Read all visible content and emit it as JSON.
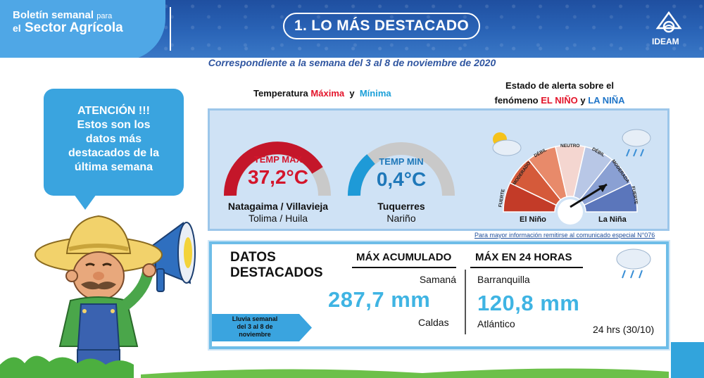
{
  "header": {
    "brand_line1": "Boletín semanal",
    "brand_line1_small": "para",
    "brand_line2_small": "el",
    "brand_line2": "Sector Agrícola",
    "section_title": "1. LO MÁS DESTACADO",
    "logo_text": "IDEAM",
    "subtitle": "Correspondiente a la semana del 3 al  8 de noviembre de 2020"
  },
  "bubble": {
    "line1": "ATENCIÓN !!!",
    "line2": "Estos son los",
    "line3": "datos más",
    "line4": "destacados de la",
    "line5": "última semana"
  },
  "temperature": {
    "title_prefix": "Temperatura",
    "max_word": "Máxima",
    "and": "y",
    "min_word": "Mínima",
    "max": {
      "label": "TEMP MAX",
      "value": "37,2°C",
      "place": "Natagaima / Villavieja",
      "department": "Tolima / Huila"
    },
    "min": {
      "label": "TEMP MIN",
      "value": "0,4°C",
      "place": "Tuquerres",
      "department": "Nariño"
    }
  },
  "enso": {
    "title_line1": "Estado de alerta sobre  el",
    "title_line2_prefix": "fenómeno",
    "nino": "EL NIÑO",
    "and": "y",
    "nina": "LA NIÑA",
    "scale": [
      "FUERTE",
      "MODERADO",
      "DÉBIL",
      "NEUTRO",
      "DÉBIL",
      "MODERADA",
      "FUERTE"
    ],
    "left_label": "El Niño",
    "right_label": "La Niña",
    "footnote": "Para mayor información remitirse al comunicado especial N°076"
  },
  "datos": {
    "title_line1": "DATOS",
    "title_line2": "DESTACADOS",
    "col1_head": "MÁX ACUMULADO",
    "col2_head": "MÁX EN 24 HORAS",
    "col1_place": "Samaná",
    "col1_value": "287,7 mm",
    "col1_dept": "Caldas",
    "col2_place": "Barranquilla",
    "col2_value": "120,8 mm",
    "col2_dept": "Atlántico",
    "col2_note": "24 hrs (30/10)",
    "tag_line1": "Lluvia semanal",
    "tag_line2": "del 3 al 8 de",
    "tag_line3": "noviembre"
  },
  "colors": {
    "header_blue": "#2a64b7",
    "accent_red": "#e3142a",
    "accent_cyan": "#3fb4e3",
    "panel_bg": "#cfe2f5"
  }
}
